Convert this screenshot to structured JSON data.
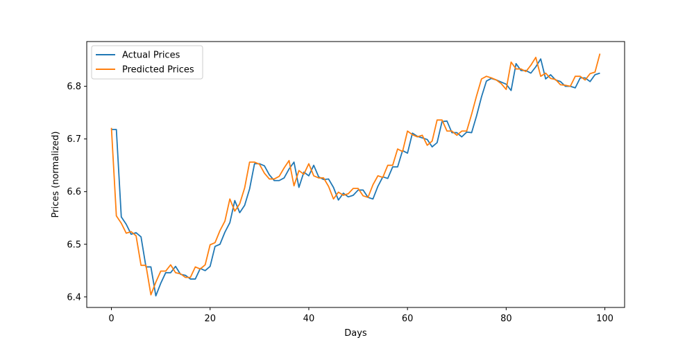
{
  "chart_data": {
    "type": "line",
    "title": "",
    "xlabel": "Days",
    "ylabel": "Prices (normalized)",
    "xlim": [
      -5,
      104
    ],
    "ylim": [
      6.38,
      6.885
    ],
    "x_ticks": [
      0,
      20,
      40,
      60,
      80,
      100
    ],
    "y_ticks": [
      6.4,
      6.5,
      6.6,
      6.7,
      6.8
    ],
    "x_tick_labels": [
      "0",
      "20",
      "40",
      "60",
      "80",
      "100"
    ],
    "y_tick_labels": [
      "6.4",
      "6.5",
      "6.6",
      "6.7",
      "6.8"
    ],
    "grid": false,
    "legend_position": "top-left",
    "series": [
      {
        "name": "Actual Prices",
        "color": "#1f77b4",
        "values": [
          6.718,
          6.718,
          6.552,
          6.538,
          6.519,
          6.522,
          6.514,
          6.457,
          6.457,
          6.402,
          6.426,
          6.446,
          6.446,
          6.458,
          6.443,
          6.441,
          6.434,
          6.434,
          6.454,
          6.45,
          6.458,
          6.496,
          6.5,
          6.523,
          6.541,
          6.583,
          6.56,
          6.574,
          6.605,
          6.653,
          6.653,
          6.649,
          6.632,
          6.621,
          6.621,
          6.626,
          6.643,
          6.656,
          6.608,
          6.637,
          6.63,
          6.65,
          6.628,
          6.623,
          6.624,
          6.608,
          6.584,
          6.597,
          6.59,
          6.593,
          6.603,
          6.603,
          6.589,
          6.586,
          6.61,
          6.628,
          6.625,
          6.647,
          6.647,
          6.678,
          6.673,
          6.711,
          6.705,
          6.702,
          6.699,
          6.685,
          6.693,
          6.733,
          6.734,
          6.712,
          6.712,
          6.704,
          6.713,
          6.712,
          6.744,
          6.78,
          6.81,
          6.815,
          6.812,
          6.808,
          6.804,
          6.792,
          6.843,
          6.83,
          6.83,
          6.825,
          6.837,
          6.852,
          6.814,
          6.822,
          6.812,
          6.809,
          6.8,
          6.8,
          6.797,
          6.816,
          6.816,
          6.809,
          6.822,
          6.825
        ]
      },
      {
        "name": "Predicted Prices",
        "color": "#ff7f0e",
        "values": [
          6.721,
          6.554,
          6.54,
          6.521,
          6.524,
          6.516,
          6.46,
          6.46,
          6.404,
          6.428,
          6.449,
          6.449,
          6.461,
          6.446,
          6.444,
          6.437,
          6.437,
          6.457,
          6.453,
          6.461,
          6.499,
          6.503,
          6.526,
          6.544,
          6.586,
          6.563,
          6.577,
          6.607,
          6.656,
          6.656,
          6.652,
          6.635,
          6.624,
          6.624,
          6.629,
          6.645,
          6.659,
          6.611,
          6.64,
          6.633,
          6.653,
          6.63,
          6.626,
          6.626,
          6.61,
          6.586,
          6.599,
          6.593,
          6.596,
          6.606,
          6.606,
          6.592,
          6.589,
          6.613,
          6.63,
          6.627,
          6.65,
          6.65,
          6.681,
          6.676,
          6.715,
          6.708,
          6.704,
          6.707,
          6.688,
          6.696,
          6.736,
          6.736,
          6.715,
          6.715,
          6.707,
          6.715,
          6.715,
          6.747,
          6.782,
          6.814,
          6.819,
          6.816,
          6.812,
          6.805,
          6.794,
          6.846,
          6.833,
          6.833,
          6.828,
          6.84,
          6.855,
          6.819,
          6.825,
          6.815,
          6.813,
          6.803,
          6.802,
          6.8,
          6.819,
          6.819,
          6.812,
          6.824,
          6.827,
          6.862
        ]
      }
    ]
  }
}
